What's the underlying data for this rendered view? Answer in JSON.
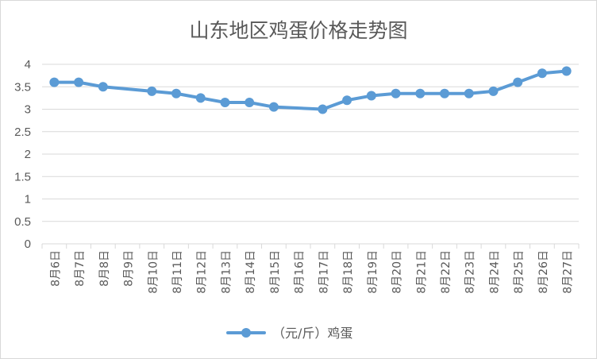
{
  "chart_data": {
    "type": "line",
    "title": "山东地区鸡蛋价格走势图",
    "xlabel": "",
    "ylabel": "",
    "categories": [
      "8月6日",
      "8月7日",
      "8月8日",
      "8月9日",
      "8月10日",
      "8月11日",
      "8月12日",
      "8月13日",
      "8月14日",
      "8月15日",
      "8月16日",
      "8月17日",
      "8月18日",
      "8月19日",
      "8月20日",
      "8月21日",
      "8月22日",
      "8月23日",
      "8月24日",
      "8月25日",
      "8月26日",
      "8月27日"
    ],
    "series": [
      {
        "name": "（元/斤）鸡蛋",
        "values": [
          3.6,
          3.6,
          3.5,
          null,
          3.4,
          3.35,
          3.25,
          3.15,
          3.15,
          3.05,
          null,
          3.0,
          3.2,
          3.3,
          3.35,
          3.35,
          3.35,
          3.35,
          3.4,
          3.6,
          3.8,
          3.85
        ],
        "color": "#5b9bd5"
      }
    ],
    "ylim": [
      0,
      4
    ],
    "yticks": [
      "0",
      "0.5",
      "1",
      "1.5",
      "2",
      "2.5",
      "3",
      "3.5",
      "4"
    ],
    "grid": true,
    "legend_position": "bottom"
  },
  "colors": {
    "series": "#5b9bd5",
    "grid": "#d9d9d9",
    "text": "#595959"
  }
}
